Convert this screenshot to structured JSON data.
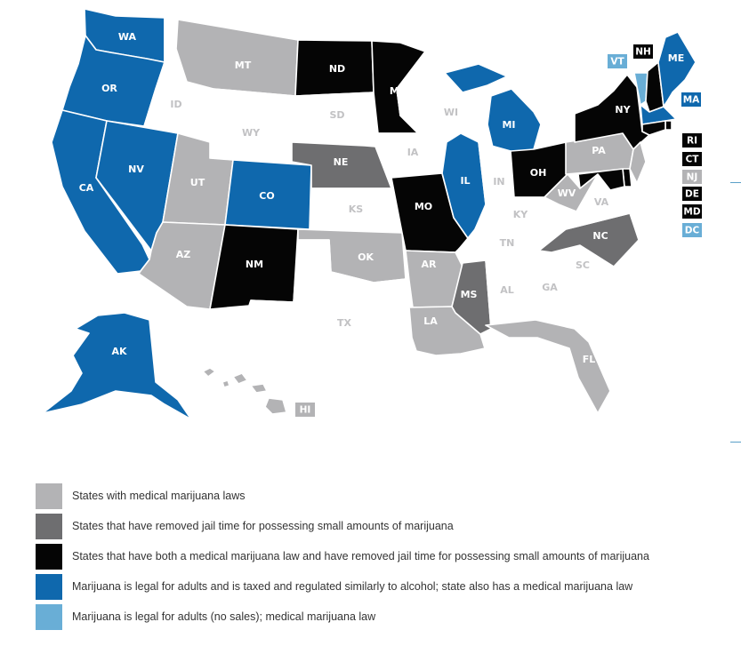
{
  "colors": {
    "medical": "#b3b3b5",
    "decrim": "#6e6e70",
    "both": "#050505",
    "legal_taxed": "#0f68ad",
    "legal_no_sales": "#69aed6",
    "none": "#ffffff",
    "outline": "#c9c9c9"
  },
  "legend": [
    {
      "category": "medical",
      "label": "States with medical marijuana laws"
    },
    {
      "category": "decrim",
      "label": "States that have removed jail time for possessing small amounts of marijuana"
    },
    {
      "category": "both",
      "label": "States that have both a medical marijuana law and have removed jail time for possessing small amounts of marijuana"
    },
    {
      "category": "legal_taxed",
      "label": "Marijuana is legal for adults and is taxed and regulated similarly to alcohol; state also has a medical marijuana law"
    },
    {
      "category": "legal_no_sales",
      "label": "Marijuana is legal for adults (no sales); medical marijuana law"
    }
  ],
  "states": [
    {
      "abbr": "WA",
      "category": "legal_taxed"
    },
    {
      "abbr": "OR",
      "category": "legal_taxed"
    },
    {
      "abbr": "CA",
      "category": "legal_taxed"
    },
    {
      "abbr": "NV",
      "category": "legal_taxed"
    },
    {
      "abbr": "ID",
      "category": "none"
    },
    {
      "abbr": "MT",
      "category": "medical"
    },
    {
      "abbr": "WY",
      "category": "none"
    },
    {
      "abbr": "UT",
      "category": "medical"
    },
    {
      "abbr": "AZ",
      "category": "medical"
    },
    {
      "abbr": "CO",
      "category": "legal_taxed"
    },
    {
      "abbr": "NM",
      "category": "both"
    },
    {
      "abbr": "ND",
      "category": "both"
    },
    {
      "abbr": "SD",
      "category": "none"
    },
    {
      "abbr": "NE",
      "category": "decrim"
    },
    {
      "abbr": "KS",
      "category": "none"
    },
    {
      "abbr": "OK",
      "category": "medical"
    },
    {
      "abbr": "TX",
      "category": "none"
    },
    {
      "abbr": "MN",
      "category": "both"
    },
    {
      "abbr": "IA",
      "category": "none"
    },
    {
      "abbr": "MO",
      "category": "both"
    },
    {
      "abbr": "AR",
      "category": "medical"
    },
    {
      "abbr": "LA",
      "category": "medical"
    },
    {
      "abbr": "WI",
      "category": "none"
    },
    {
      "abbr": "IL",
      "category": "legal_taxed"
    },
    {
      "abbr": "MI",
      "category": "legal_taxed"
    },
    {
      "abbr": "IN",
      "category": "none"
    },
    {
      "abbr": "OH",
      "category": "both"
    },
    {
      "abbr": "KY",
      "category": "none"
    },
    {
      "abbr": "TN",
      "category": "none"
    },
    {
      "abbr": "MS",
      "category": "decrim"
    },
    {
      "abbr": "AL",
      "category": "none"
    },
    {
      "abbr": "GA",
      "category": "none"
    },
    {
      "abbr": "FL",
      "category": "medical"
    },
    {
      "abbr": "SC",
      "category": "none"
    },
    {
      "abbr": "NC",
      "category": "decrim"
    },
    {
      "abbr": "VA",
      "category": "none"
    },
    {
      "abbr": "WV",
      "category": "medical"
    },
    {
      "abbr": "PA",
      "category": "medical"
    },
    {
      "abbr": "NY",
      "category": "both"
    },
    {
      "abbr": "VT",
      "category": "legal_no_sales"
    },
    {
      "abbr": "NH",
      "category": "both"
    },
    {
      "abbr": "ME",
      "category": "legal_taxed"
    },
    {
      "abbr": "MA",
      "category": "legal_taxed"
    },
    {
      "abbr": "RI",
      "category": "both"
    },
    {
      "abbr": "CT",
      "category": "both"
    },
    {
      "abbr": "NJ",
      "category": "medical"
    },
    {
      "abbr": "DE",
      "category": "both"
    },
    {
      "abbr": "MD",
      "category": "both"
    },
    {
      "abbr": "DC",
      "category": "legal_no_sales"
    },
    {
      "abbr": "AK",
      "category": "legal_taxed"
    },
    {
      "abbr": "HI",
      "category": "medical"
    }
  ]
}
